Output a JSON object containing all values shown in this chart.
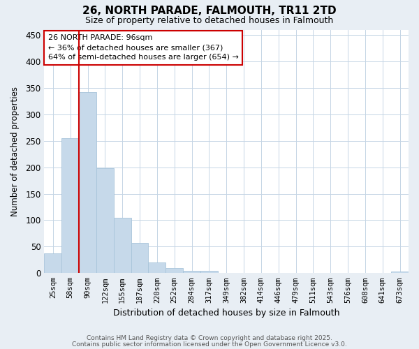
{
  "title": "26, NORTH PARADE, FALMOUTH, TR11 2TD",
  "subtitle": "Size of property relative to detached houses in Falmouth",
  "xlabel": "Distribution of detached houses by size in Falmouth",
  "ylabel": "Number of detached properties",
  "categories": [
    "25sqm",
    "58sqm",
    "90sqm",
    "122sqm",
    "155sqm",
    "187sqm",
    "220sqm",
    "252sqm",
    "284sqm",
    "317sqm",
    "349sqm",
    "382sqm",
    "414sqm",
    "446sqm",
    "479sqm",
    "511sqm",
    "543sqm",
    "576sqm",
    "608sqm",
    "641sqm",
    "673sqm"
  ],
  "values": [
    37,
    255,
    342,
    198,
    104,
    57,
    20,
    10,
    5,
    4,
    0,
    0,
    0,
    0,
    0,
    0,
    0,
    0,
    0,
    0,
    3
  ],
  "bar_color": "#c6d9ea",
  "bar_edgecolor": "#a8c4da",
  "vline_color": "#cc0000",
  "vline_x": 1.5,
  "annotation_text": "26 NORTH PARADE: 96sqm\n← 36% of detached houses are smaller (367)\n64% of semi-detached houses are larger (654) →",
  "annotation_box_color": "#cc0000",
  "ylim": [
    0,
    460
  ],
  "yticks": [
    0,
    50,
    100,
    150,
    200,
    250,
    300,
    350,
    400,
    450
  ],
  "footer_line1": "Contains HM Land Registry data © Crown copyright and database right 2025.",
  "footer_line2": "Contains public sector information licensed under the Open Government Licence v3.0.",
  "background_color": "#e8eef4",
  "plot_bg_color": "#ffffff",
  "grid_color": "#c5d5e5"
}
